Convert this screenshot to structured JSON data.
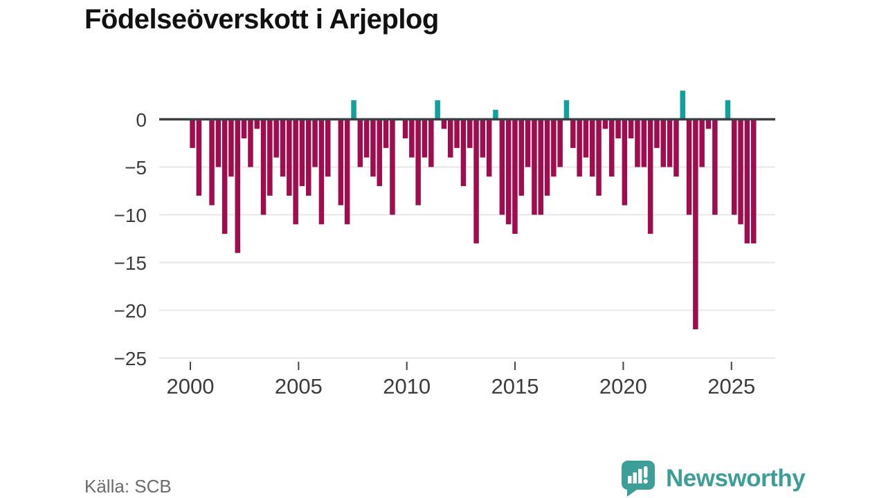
{
  "title": "Födelseöverskott i Arjeplog",
  "source": "Källa: SCB",
  "branding": {
    "name": "Newsworthy"
  },
  "chart_data": {
    "type": "bar",
    "title": "Födelseöverskott i Arjeplog",
    "xlabel": "",
    "ylabel": "",
    "x_axis": {
      "start_year": 2000.0,
      "step_years": 0.298,
      "tick_labels": [
        "2000",
        "2005",
        "2010",
        "2015",
        "2020",
        "2025"
      ],
      "tick_years": [
        2000,
        2005,
        2010,
        2015,
        2020,
        2025
      ]
    },
    "y_axis": {
      "tick_labels": [
        "0",
        "−5",
        "−10",
        "−15",
        "−20",
        "−25"
      ],
      "tick_values": [
        0,
        -5,
        -10,
        -15,
        -20,
        -25
      ],
      "ylim": [
        -25,
        3
      ],
      "grid": true
    },
    "legend": "none",
    "colors": {
      "negative": "#a00d4f",
      "positive": "#12a09d",
      "zero_line": "#3d4043",
      "gridline": "#e7e7e7",
      "tick_text": "#3c3c3c"
    },
    "values": [
      -3,
      -8,
      0,
      -9,
      -5,
      -12,
      -6,
      -14,
      -2,
      -5,
      -1,
      -10,
      -8,
      -4,
      -6,
      -8,
      -11,
      -7,
      -8,
      -5,
      -11,
      -6,
      0,
      -9,
      -11,
      2,
      -5,
      -4,
      -6,
      -7,
      -3,
      -10,
      0,
      -2,
      -4,
      -9,
      -4,
      -5,
      2,
      -1,
      -4,
      -3,
      -7,
      -3,
      -13,
      -4,
      -6,
      1,
      -10,
      -11,
      -12,
      -8,
      -5,
      -10,
      -10,
      -8,
      -6,
      -5,
      2,
      -3,
      -6,
      -4,
      -6,
      -8,
      -1,
      -6,
      -2,
      -9,
      -2,
      -5,
      -5,
      -12,
      -3,
      -5,
      -5,
      -6,
      3,
      -10,
      -22,
      -5,
      -1,
      -10,
      0,
      2,
      -10,
      -11,
      -13,
      -13
    ]
  }
}
